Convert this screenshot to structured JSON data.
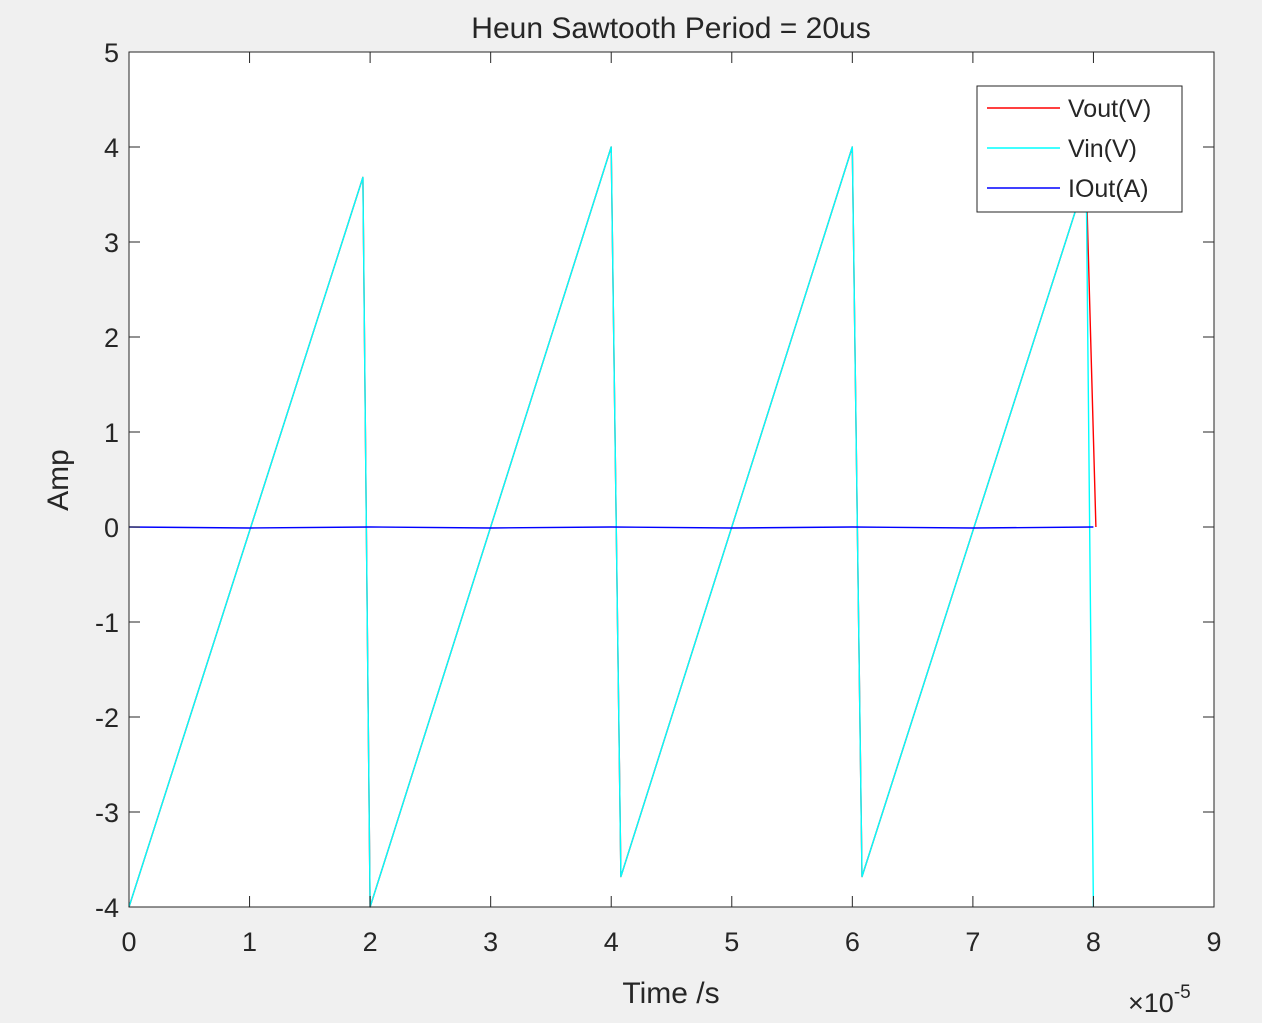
{
  "chart_data": {
    "type": "line",
    "title": "Heun Sawtooth Period = 20us",
    "xlabel": "Time /s",
    "ylabel": "Amp",
    "x_multiplier_base": "×10",
    "x_multiplier_exponent": "-5",
    "xlim": [
      0,
      9
    ],
    "ylim": [
      -4,
      5
    ],
    "xticks": [
      0,
      1,
      2,
      3,
      4,
      5,
      6,
      7,
      8,
      9
    ],
    "yticks": [
      -4,
      -3,
      -2,
      -1,
      0,
      1,
      2,
      3,
      4,
      5
    ],
    "xtick_labels": [
      "0",
      "1",
      "2",
      "3",
      "4",
      "5",
      "6",
      "7",
      "8",
      "9"
    ],
    "ytick_labels": [
      "-4",
      "-3",
      "-2",
      "-1",
      "0",
      "1",
      "2",
      "3",
      "4",
      "5"
    ],
    "grid": false,
    "legend_position": "top-right",
    "series": [
      {
        "name": "Vout(V)",
        "color": "#ff0000",
        "points": [
          [
            0,
            -4
          ],
          [
            1.94,
            3.68
          ],
          [
            2.0,
            -4
          ],
          [
            4.0,
            4.0
          ],
          [
            4.08,
            -3.68
          ],
          [
            6.0,
            4.0
          ],
          [
            6.08,
            -3.68
          ],
          [
            7.94,
            3.68
          ],
          [
            8.02,
            0.0
          ]
        ]
      },
      {
        "name": "Vin(V)",
        "color": "#00ffff",
        "points": [
          [
            0,
            -4
          ],
          [
            1.94,
            3.68
          ],
          [
            2.0,
            -4
          ],
          [
            4.0,
            4.0
          ],
          [
            4.08,
            -3.68
          ],
          [
            6.0,
            4.0
          ],
          [
            6.08,
            -3.68
          ],
          [
            7.94,
            3.68
          ],
          [
            8.0,
            -4
          ]
        ]
      },
      {
        "name": "IOut(A)",
        "color": "#0000ff",
        "points": [
          [
            0,
            0.0
          ],
          [
            1.0,
            -0.01
          ],
          [
            2.0,
            0.0
          ],
          [
            3.0,
            -0.01
          ],
          [
            4.0,
            0.0
          ],
          [
            5.0,
            -0.01
          ],
          [
            6.0,
            0.0
          ],
          [
            7.0,
            -0.01
          ],
          [
            8.0,
            0.0
          ]
        ]
      }
    ]
  }
}
